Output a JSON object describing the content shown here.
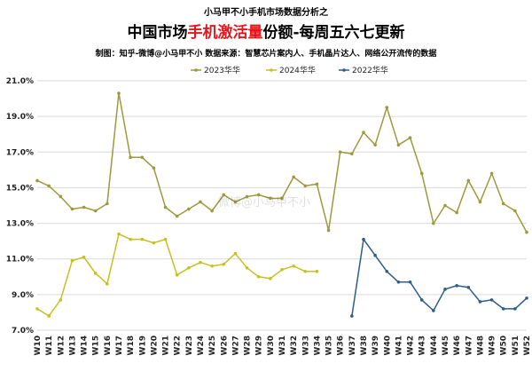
{
  "header": {
    "kicker": "小马甲不小手机市场数据分析之",
    "title_pre": "中国市场",
    "title_highlight": "手机激活量",
    "title_post": "份额-每周五六七更新",
    "source": "制图：知乎-微博@小马甲不小  数据来源：智慧芯片案内人、手机晶片达人、网络公开流传的数据"
  },
  "watermark": "微博@小马甲不小",
  "colors": {
    "highlight": "#e8141b",
    "s2023": "#9c9a3c",
    "s2024": "#c4c21f",
    "s2022": "#2c5d8c",
    "grid": "#d9d9d9"
  },
  "chart_data": {
    "type": "line",
    "categories": [
      "W10",
      "W11",
      "W12",
      "W13",
      "W14",
      "W15",
      "W16",
      "W17",
      "W18",
      "W19",
      "W20",
      "W21",
      "W22",
      "W23",
      "W24",
      "W25",
      "W26",
      "W27",
      "W28",
      "W29",
      "W30",
      "W31",
      "W32",
      "W33",
      "W34",
      "W35",
      "W36",
      "W37",
      "W38",
      "W39",
      "W40",
      "W41",
      "W42",
      "W43",
      "W44",
      "W45",
      "W46",
      "W47",
      "W48",
      "W49",
      "W50",
      "W51",
      "W52"
    ],
    "ylim": [
      7.0,
      21.0
    ],
    "yticks": [
      "7.0%",
      "9.0%",
      "11.0%",
      "13.0%",
      "15.0%",
      "17.0%",
      "19.0%",
      "21.0%"
    ],
    "ytick_values": [
      7,
      9,
      11,
      13,
      15,
      17,
      19,
      21
    ],
    "legend_position": "top",
    "grid": "horizontal",
    "series": [
      {
        "name": "2023华华",
        "values": [
          15.4,
          15.1,
          14.5,
          13.8,
          13.9,
          13.7,
          14.1,
          20.3,
          16.7,
          16.7,
          16.1,
          13.9,
          13.4,
          13.8,
          14.2,
          13.7,
          14.6,
          14.2,
          14.5,
          14.6,
          14.4,
          14.4,
          15.6,
          15.1,
          15.2,
          12.6,
          17.0,
          16.9,
          18.1,
          17.4,
          19.5,
          17.4,
          17.8,
          15.8,
          13.0,
          14.0,
          13.6,
          15.4,
          14.2,
          15.8,
          14.1,
          13.7,
          12.5
        ]
      },
      {
        "name": "2024华华",
        "values": [
          8.2,
          7.8,
          8.7,
          10.9,
          11.1,
          10.2,
          9.6,
          12.4,
          12.1,
          12.1,
          11.9,
          12.1,
          10.1,
          10.5,
          10.8,
          10.6,
          10.7,
          11.3,
          10.5,
          10.0,
          9.9,
          10.4,
          10.6,
          10.3,
          10.3,
          null,
          null,
          null,
          null,
          null,
          null,
          null,
          null,
          null,
          null,
          null,
          null,
          null,
          null,
          null,
          null,
          null,
          null
        ]
      },
      {
        "name": "2022华华",
        "values": [
          null,
          null,
          null,
          null,
          null,
          null,
          null,
          null,
          null,
          null,
          null,
          null,
          null,
          null,
          null,
          null,
          null,
          null,
          null,
          null,
          null,
          null,
          null,
          null,
          null,
          null,
          null,
          7.8,
          12.1,
          11.2,
          10.3,
          9.7,
          9.7,
          8.7,
          8.1,
          9.3,
          9.5,
          9.4,
          8.6,
          8.7,
          8.2,
          8.2,
          8.8
        ]
      }
    ]
  }
}
